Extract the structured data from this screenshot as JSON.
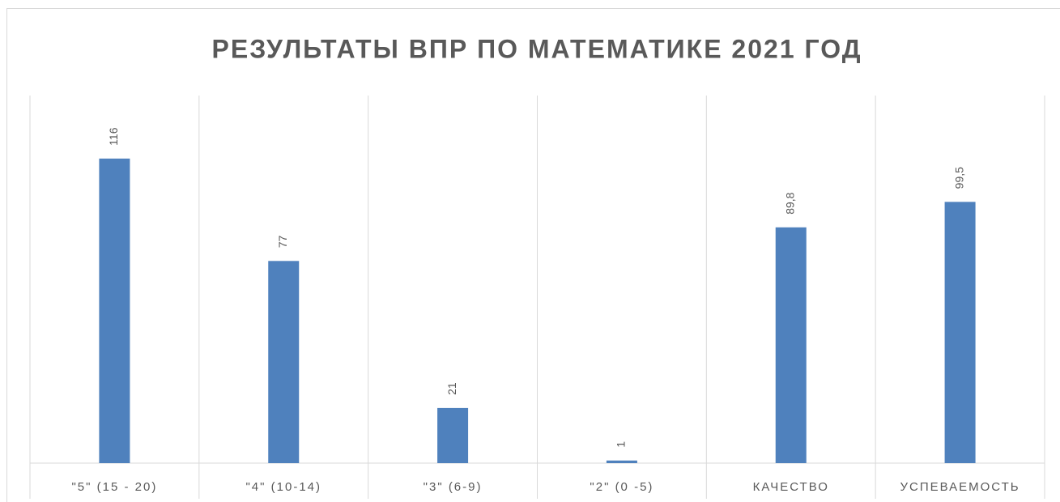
{
  "chart_data": {
    "type": "bar",
    "title": "РЕЗУЛЬТАТЫ ВПР ПО МАТЕМАТИКЕ 2021 ГОД",
    "categories": [
      "\"5\" (15 - 20)",
      "\"4\" (10-14)",
      "\"3\" (6-9)",
      "\"2\"  (0 -5)",
      "КАЧЕСТВО",
      "УСПЕВАЕМОСТЬ"
    ],
    "values": [
      116,
      77,
      21,
      1,
      89.8,
      99.5
    ],
    "value_labels": [
      "116",
      "77",
      "21",
      "1",
      "89,8",
      "99,5"
    ],
    "color": "#4f81bd",
    "ylim": [
      0,
      140
    ]
  }
}
